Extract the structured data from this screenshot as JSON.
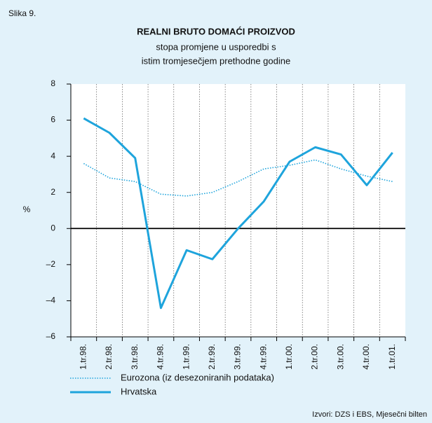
{
  "chart_data": {
    "type": "line",
    "figure_label": "Slika 9.",
    "title": "REALNI BRUTO DOMAĆI PROIZVOD",
    "subtitle": [
      "stopa promjene u usporedbi s",
      "istim tromjesečjem prethodne godine"
    ],
    "y_label": "%",
    "source": "Izvori: DZS i EBS, Mjesečni bilten",
    "categories": [
      "1.tr.98.",
      "2.tr.98.",
      "3.tr.98.",
      "4.tr.98.",
      "1.tr.99.",
      "2.tr.99.",
      "3.tr.99.",
      "4.tr.99.",
      "1.tr.00.",
      "2.tr.00.",
      "3.tr.00.",
      "4.tr.00.",
      "1.tr.01."
    ],
    "series": [
      {
        "name": "Eurozona (iz desezoniranih podataka)",
        "color": "#1ea4dc",
        "style": "dotted",
        "values": [
          3.6,
          2.8,
          2.6,
          1.9,
          1.8,
          2.0,
          2.6,
          3.3,
          3.5,
          3.8,
          3.3,
          2.9,
          2.6
        ]
      },
      {
        "name": "Hrvatska",
        "color": "#1ea4dc",
        "style": "solid",
        "values": [
          6.1,
          5.3,
          3.9,
          -4.4,
          -1.2,
          -1.7,
          0.0,
          1.5,
          3.7,
          4.5,
          4.1,
          2.4,
          4.2
        ]
      }
    ],
    "ylim": [
      -6,
      8
    ],
    "yticks": [
      {
        "value": -6,
        "label": "–6"
      },
      {
        "value": -4,
        "label": "–4"
      },
      {
        "value": -2,
        "label": "–2"
      },
      0,
      2,
      4,
      6,
      8
    ],
    "grid": true
  }
}
